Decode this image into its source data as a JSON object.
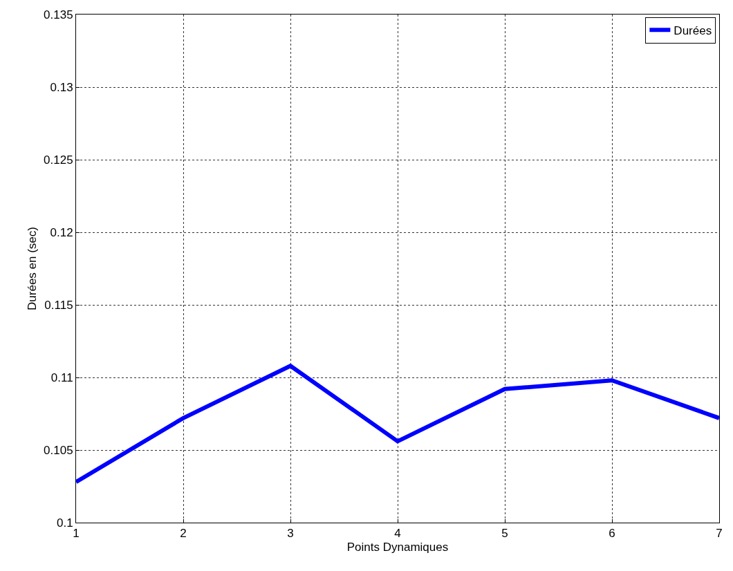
{
  "chart_data": {
    "type": "line",
    "xlabel": "Points Dynamiques",
    "ylabel": "Durées en (sec)",
    "x": [
      1,
      2,
      3,
      4,
      5,
      6,
      7
    ],
    "series": [
      {
        "name": "Durées",
        "color": "#0000ff",
        "values": [
          0.1028,
          0.1072,
          0.1108,
          0.1056,
          0.1092,
          0.1098,
          0.1072
        ]
      }
    ],
    "xlim": [
      1,
      7
    ],
    "xticks": [
      1,
      2,
      3,
      4,
      5,
      6,
      7
    ],
    "ylim": [
      0.1,
      0.135
    ],
    "yticks": [
      0.1,
      0.105,
      0.11,
      0.115,
      0.12,
      0.125,
      0.13,
      0.135
    ],
    "grid": true,
    "legend": "top right",
    "marker": "none",
    "line_style": "solid"
  }
}
